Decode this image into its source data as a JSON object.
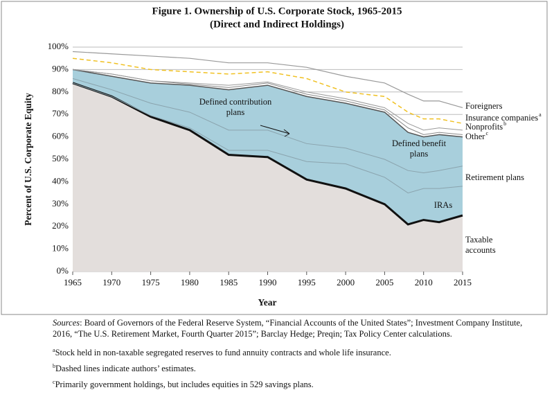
{
  "chart_data": {
    "type": "stacked-area",
    "title": "Figure 1. Ownership of U.S. Corporate Stock, 1965-2015",
    "subtitle": "(Direct and Indirect Holdings)",
    "xlabel": "Year",
    "ylabel": "Percent of U.S. Corporate Equity",
    "x": [
      1965,
      1970,
      1975,
      1980,
      1985,
      1990,
      1995,
      2000,
      2005,
      2008,
      2010,
      2012,
      2015
    ],
    "xlim": [
      1965,
      2015
    ],
    "xticks": [
      1965,
      1970,
      1975,
      1980,
      1985,
      1990,
      1995,
      2000,
      2005,
      2010,
      2015
    ],
    "ylim": [
      0,
      100
    ],
    "yticks": [
      {
        "value": 0,
        "label": "0%"
      },
      {
        "value": 10,
        "label": "10%"
      },
      {
        "value": 20,
        "label": "20%"
      },
      {
        "value": 30,
        "label": "30%"
      },
      {
        "value": 40,
        "label": "40%"
      },
      {
        "value": 50,
        "label": "50%"
      },
      {
        "value": 60,
        "label": "60%"
      },
      {
        "value": 70,
        "label": "70%"
      },
      {
        "value": 80,
        "label": "80%"
      },
      {
        "value": 90,
        "label": "90%"
      },
      {
        "value": 100,
        "label": "100%"
      }
    ],
    "grid": true,
    "group_label": "Retirement plans",
    "series": [
      {
        "name": "Taxable accounts",
        "color": "#111111",
        "fill": "#e3dedc",
        "dash": false,
        "width": 3,
        "label_position": "right",
        "values": [
          84,
          78,
          69,
          63,
          52,
          51,
          41,
          37,
          30,
          21,
          23,
          22,
          25
        ]
      },
      {
        "name": "IRAs",
        "color": "#8aa3ad",
        "fill": "#a8cfdc",
        "dash": false,
        "width": 1,
        "label_position": "inside",
        "values": [
          0,
          0,
          0.5,
          1,
          2,
          3,
          8,
          11,
          12,
          14,
          14,
          15,
          13
        ]
      },
      {
        "name": "Defined contribution plans",
        "color": "#8aa3ad",
        "fill": "#a8cfdc",
        "dash": false,
        "width": 1,
        "label_position": "inside",
        "values": [
          2,
          3,
          5.5,
          7,
          9,
          9,
          8,
          7,
          8,
          10,
          7,
          8,
          9
        ]
      },
      {
        "name": "Defined benefit plans",
        "color": "#555555",
        "fill": "#a8cfdc",
        "dash": false,
        "width": 1.5,
        "label_position": "inside",
        "values": [
          4,
          6,
          9,
          12,
          18,
          20,
          21,
          20,
          21,
          17,
          16,
          16,
          13
        ]
      },
      {
        "name": "Other",
        "sup": "c",
        "color": "#888888",
        "fill": null,
        "dash": false,
        "width": 1,
        "label_position": "right",
        "values": [
          0,
          1,
          1,
          0.5,
          1,
          1,
          1,
          1,
          1,
          2,
          1,
          1,
          1
        ]
      },
      {
        "name": "Nonprofits",
        "sup": "b",
        "color": "#999999",
        "fill": null,
        "dash": false,
        "width": 1,
        "label_position": "right",
        "values": [
          0,
          0,
          0,
          0.5,
          1,
          0.5,
          1,
          1,
          1,
          2,
          2,
          2,
          2
        ]
      },
      {
        "name": "Insurance companies",
        "sup": "a",
        "color": "#f0c020",
        "fill": null,
        "dash": true,
        "width": 1.5,
        "label_position": "right",
        "values": [
          5,
          5,
          5,
          5,
          5,
          4.5,
          6,
          3,
          5,
          5,
          5,
          4,
          3
        ]
      },
      {
        "name": "Foreigners",
        "color": "#999999",
        "fill": null,
        "dash": false,
        "width": 1.2,
        "label_position": "right",
        "values": [
          3,
          4,
          6,
          6,
          5,
          4,
          5,
          7,
          6,
          8,
          8,
          8,
          7
        ]
      }
    ]
  },
  "notes": {
    "sources_label": "Sources",
    "sources_text": ": Board of Governors of the Federal Reserve System, “Financial Accounts of the United States”; Investment Company Institute, 2016, “The U.S. Retirement Market, Fourth Quarter 2015”; Barclay Hedge; Preqin; Tax Policy Center calculations.",
    "footnotes": [
      {
        "mark": "a",
        "text": "Stock held in non-taxable segregated reserves to fund annuity contracts and whole life insurance."
      },
      {
        "mark": "b",
        "text": "Dashed lines indicate authors’ estimates."
      },
      {
        "mark": "c",
        "text": "Primarily government holdings, but includes equities in 529 savings plans."
      }
    ]
  }
}
